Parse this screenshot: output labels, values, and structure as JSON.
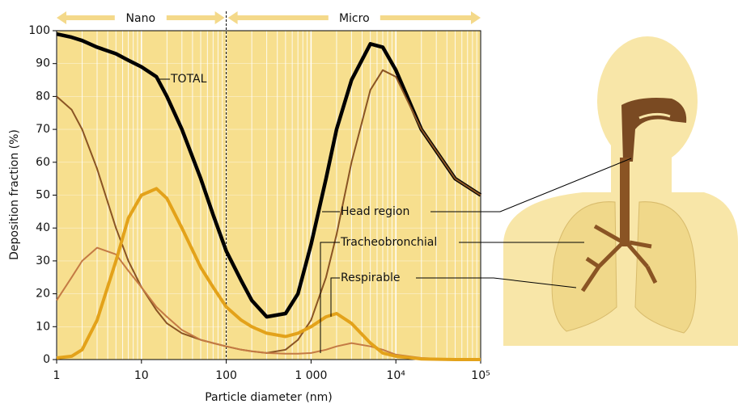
{
  "chart_data": {
    "type": "line",
    "xlabel": "Particle diameter (nm)",
    "ylabel": "Deposition fraction (%)",
    "log_x": true,
    "x": [
      1,
      1.5,
      2,
      3,
      5,
      7,
      10,
      15,
      20,
      30,
      50,
      70,
      100,
      150,
      200,
      300,
      500,
      700,
      1000,
      1500,
      2000,
      3000,
      5000,
      7000,
      10000,
      20000,
      50000,
      100000
    ],
    "series": [
      {
        "name": "TOTAL",
        "color": "#000000",
        "width": 4.5,
        "values": [
          99,
          98,
          97,
          95,
          93,
          91,
          89,
          86,
          80,
          70,
          55,
          44,
          33,
          24,
          18,
          13,
          14,
          20,
          35,
          55,
          70,
          85,
          96,
          95,
          88,
          70,
          55,
          50
        ]
      },
      {
        "name": "Head region",
        "color": "#8a5424",
        "width": 2,
        "values": [
          80,
          76,
          70,
          58,
          40,
          30,
          22,
          15,
          11,
          8,
          6,
          5,
          4,
          3,
          2.5,
          2,
          3,
          6,
          12,
          25,
          38,
          60,
          82,
          88,
          86,
          70,
          55,
          50
        ]
      },
      {
        "name": "Tracheobronchial",
        "color": "#c47a44",
        "width": 2,
        "values": [
          18,
          25,
          30,
          34,
          32,
          27,
          22,
          16,
          13,
          9,
          6,
          5,
          4,
          3,
          2.5,
          2,
          1.8,
          1.8,
          2,
          3,
          4,
          5,
          4,
          3,
          1.5,
          0.5,
          0,
          0
        ]
      },
      {
        "name": "Respirable",
        "color": "#e3a21a",
        "width": 4,
        "values": [
          0.5,
          1,
          3,
          12,
          30,
          43,
          50,
          52,
          49,
          40,
          28,
          22,
          16,
          12,
          10,
          8,
          7,
          8,
          10,
          13,
          14,
          11,
          5,
          2,
          1,
          0.2,
          0,
          0
        ]
      }
    ],
    "xlim": [
      1,
      100000
    ],
    "xticks": [
      1,
      10,
      100,
      {
        "value": 1000,
        "label": "1 000"
      },
      {
        "value": 10000,
        "label": "10⁴"
      },
      {
        "value": 100000,
        "label": "10⁵"
      }
    ],
    "ylim": [
      0,
      100
    ],
    "yticks": [
      0,
      10,
      20,
      30,
      40,
      50,
      60,
      70,
      80,
      90,
      100
    ],
    "grid": true,
    "regions": [
      "Nano",
      "Micro"
    ]
  }
}
